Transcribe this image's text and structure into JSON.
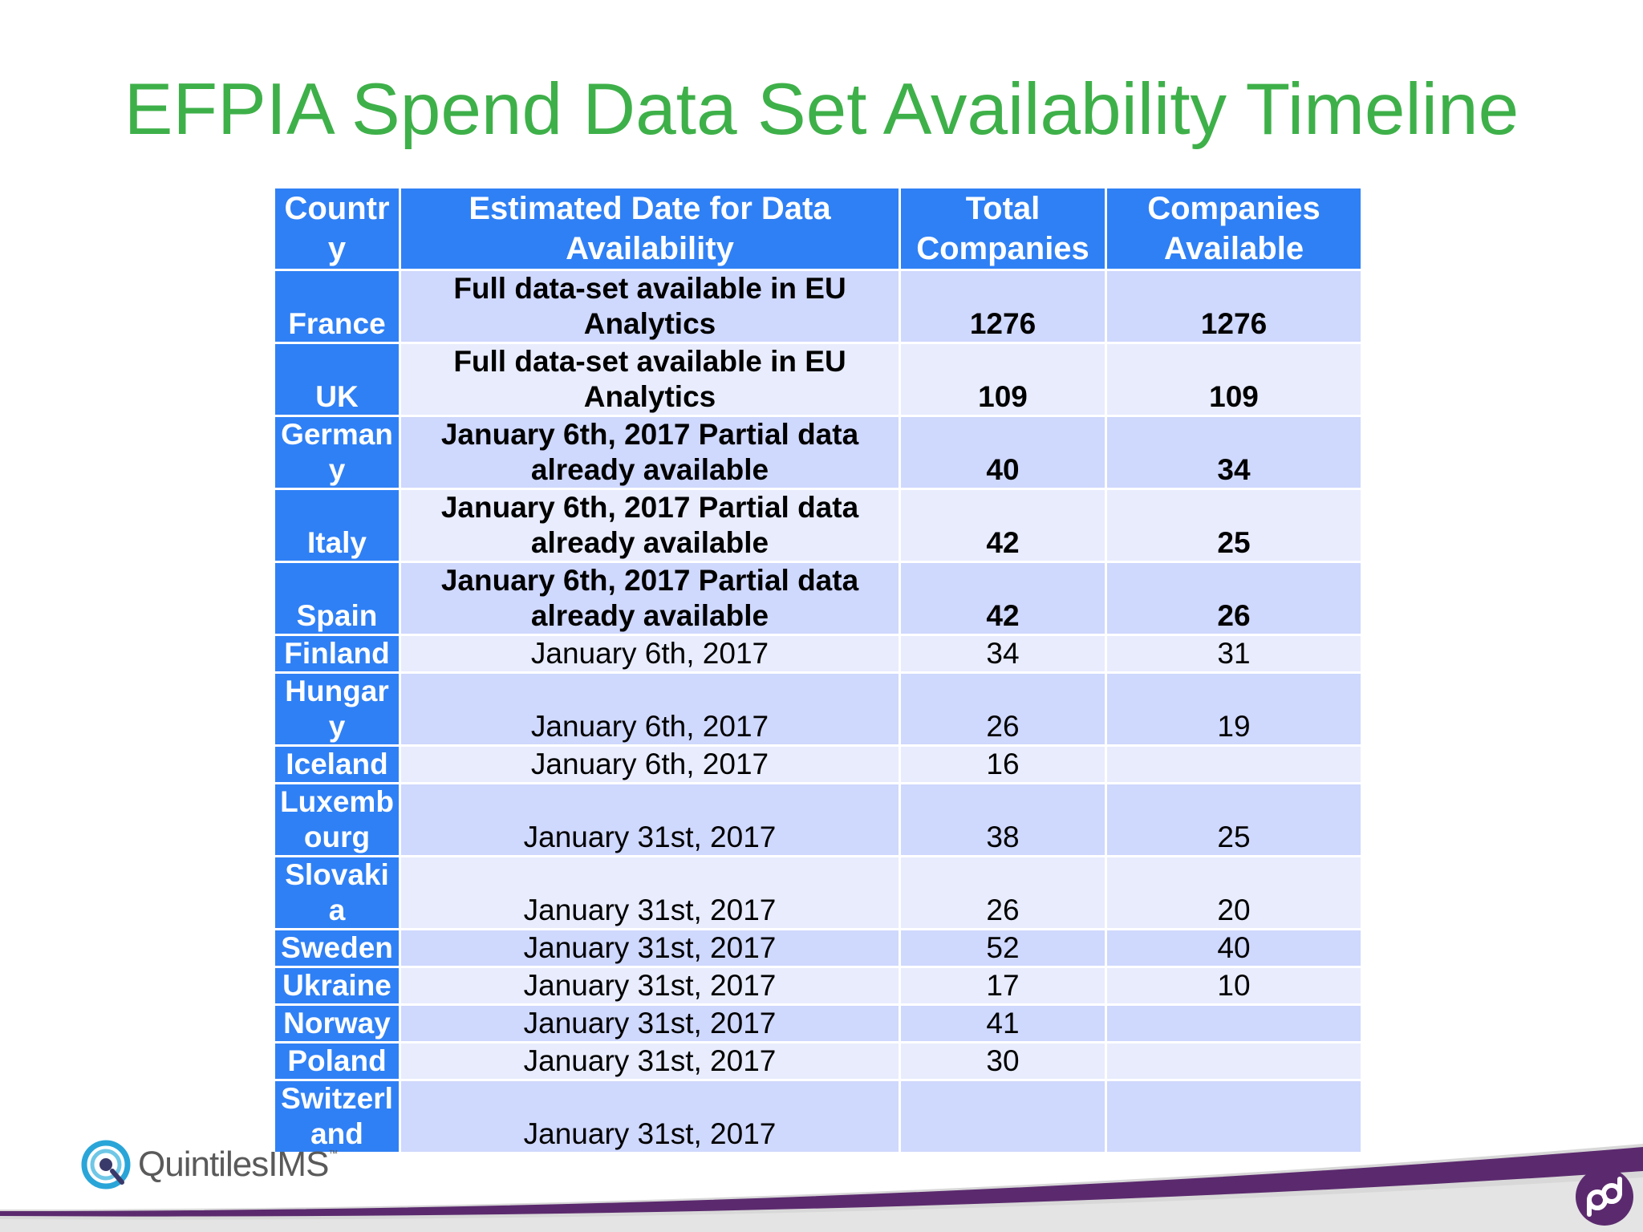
{
  "slide": {
    "title": "EFPIA Spend Data Set Availability Timeline"
  },
  "table": {
    "headers": [
      "Country",
      "Estimated Date for Data Availability",
      "Total Companies",
      "Companies Available"
    ],
    "rows": [
      {
        "country": "France",
        "date": "Full data-set available in EU Analytics",
        "total": "1276",
        "available": "1276"
      },
      {
        "country": "UK",
        "date": "Full data-set available in EU Analytics",
        "total": "109",
        "available": "109"
      },
      {
        "country": "Germany",
        "date": "January 6th, 2017 Partial data already available",
        "total": "40",
        "available": "34"
      },
      {
        "country": "Italy",
        "date": "January 6th, 2017 Partial data already available",
        "total": "42",
        "available": "25"
      },
      {
        "country": "Spain",
        "date": "January 6th, 2017 Partial data already available",
        "total": "42",
        "available": "26"
      },
      {
        "country": "Finland",
        "date": "January 6th, 2017",
        "total": "34",
        "available": "31"
      },
      {
        "country": "Hungary",
        "date": "January 6th, 2017",
        "total": "26",
        "available": "19"
      },
      {
        "country": "Iceland",
        "date": "January 6th, 2017",
        "total": "16",
        "available": ""
      },
      {
        "country": "Luxembourg",
        "date": "January 31st, 2017",
        "total": "38",
        "available": "25"
      },
      {
        "country": "Slovakia",
        "date": "January 31st, 2017",
        "total": "26",
        "available": "20"
      },
      {
        "country": "Sweden",
        "date": "January 31st, 2017",
        "total": "52",
        "available": "40"
      },
      {
        "country": "Ukraine",
        "date": "January 31st, 2017",
        "total": "17",
        "available": "10"
      },
      {
        "country": "Norway",
        "date": "January 31st, 2017",
        "total": "41",
        "available": ""
      },
      {
        "country": "Poland",
        "date": "January 31st, 2017",
        "total": "30",
        "available": ""
      },
      {
        "country": "Switzerland",
        "date": "January 31st, 2017",
        "total": "",
        "available": ""
      }
    ]
  },
  "footer": {
    "brand_name": "QuintilesIMS",
    "trademark": "™"
  },
  "colors": {
    "title_green": "#3eb049",
    "header_blue": "#2f80f5",
    "row_band_dark": "#cfd8fd",
    "row_band_light": "#e8ecfd",
    "swoosh_purple": "#5b2a6e"
  },
  "icons": [
    "quintilesims-logo-icon",
    "qd-corner-logo-icon"
  ]
}
